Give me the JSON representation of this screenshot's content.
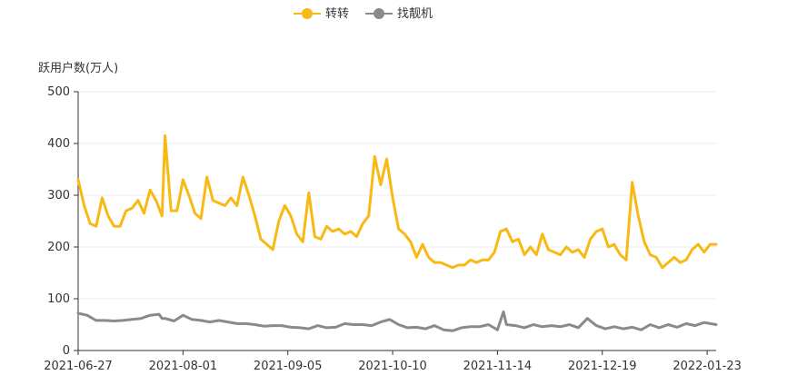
{
  "chart_data": {
    "type": "line",
    "ylabel": "跃用户数(万人)",
    "ylim": [
      0,
      500
    ],
    "yticks": [
      0,
      100,
      200,
      300,
      400,
      500
    ],
    "x_start": "2021-06-27",
    "x_end": "2022-01-26",
    "xtick_labels": [
      "2021-06-27",
      "2021-08-01",
      "2021-09-05",
      "2021-10-10",
      "2021-11-14",
      "2021-12-19",
      "2022-01-23"
    ],
    "grid": true,
    "legend_position": "top-center",
    "series": [
      {
        "name": "转转",
        "color": "#F9B914",
        "x": [
          "2021-06-27",
          "2021-06-29",
          "2021-07-01",
          "2021-07-03",
          "2021-07-05",
          "2021-07-07",
          "2021-07-09",
          "2021-07-11",
          "2021-07-13",
          "2021-07-15",
          "2021-07-17",
          "2021-07-19",
          "2021-07-21",
          "2021-07-23",
          "2021-07-25",
          "2021-07-26",
          "2021-07-28",
          "2021-07-30",
          "2021-08-01",
          "2021-08-03",
          "2021-08-05",
          "2021-08-07",
          "2021-08-09",
          "2021-08-11",
          "2021-08-13",
          "2021-08-15",
          "2021-08-17",
          "2021-08-19",
          "2021-08-21",
          "2021-08-23",
          "2021-08-25",
          "2021-08-27",
          "2021-08-29",
          "2021-08-31",
          "2021-09-02",
          "2021-09-04",
          "2021-09-06",
          "2021-09-08",
          "2021-09-10",
          "2021-09-12",
          "2021-09-14",
          "2021-09-16",
          "2021-09-18",
          "2021-09-20",
          "2021-09-22",
          "2021-09-24",
          "2021-09-26",
          "2021-09-28",
          "2021-09-30",
          "2021-10-02",
          "2021-10-04",
          "2021-10-06",
          "2021-10-08",
          "2021-10-10",
          "2021-10-12",
          "2021-10-14",
          "2021-10-16",
          "2021-10-18",
          "2021-10-20",
          "2021-10-22",
          "2021-10-24",
          "2021-10-26",
          "2021-10-28",
          "2021-10-30",
          "2021-11-01",
          "2021-11-03",
          "2021-11-05",
          "2021-11-07",
          "2021-11-09",
          "2021-11-11",
          "2021-11-13",
          "2021-11-15",
          "2021-11-17",
          "2021-11-19",
          "2021-11-21",
          "2021-11-23",
          "2021-11-25",
          "2021-11-27",
          "2021-11-29",
          "2021-12-01",
          "2021-12-03",
          "2021-12-05",
          "2021-12-07",
          "2021-12-09",
          "2021-12-11",
          "2021-12-13",
          "2021-12-15",
          "2021-12-17",
          "2021-12-19",
          "2021-12-21",
          "2021-12-23",
          "2021-12-25",
          "2021-12-27",
          "2021-12-29",
          "2021-12-31",
          "2022-01-02",
          "2022-01-04",
          "2022-01-06",
          "2022-01-08",
          "2022-01-10",
          "2022-01-12",
          "2022-01-14",
          "2022-01-16",
          "2022-01-18",
          "2022-01-20",
          "2022-01-22",
          "2022-01-24",
          "2022-01-26"
        ],
        "values": [
          330,
          280,
          245,
          240,
          295,
          260,
          240,
          240,
          270,
          275,
          290,
          265,
          310,
          290,
          260,
          415,
          270,
          270,
          330,
          300,
          265,
          255,
          335,
          290,
          285,
          280,
          295,
          280,
          335,
          300,
          260,
          215,
          205,
          195,
          250,
          280,
          260,
          225,
          210,
          305,
          220,
          215,
          240,
          230,
          235,
          225,
          230,
          220,
          245,
          260,
          375,
          320,
          370,
          295,
          235,
          225,
          210,
          180,
          205,
          180,
          170,
          170,
          165,
          160,
          165,
          165,
          175,
          170,
          175,
          175,
          190,
          230,
          235,
          210,
          215,
          185,
          200,
          185,
          225,
          195,
          190,
          185,
          200,
          190,
          195,
          180,
          215,
          230,
          235,
          200,
          205,
          185,
          175,
          325,
          260,
          210,
          185,
          180,
          160,
          170,
          180,
          170,
          175,
          195,
          205,
          190,
          205,
          205
        ]
      },
      {
        "name": "找靓机",
        "color": "#8A8A8A",
        "x": [
          "2021-06-27",
          "2021-06-30",
          "2021-07-03",
          "2021-07-06",
          "2021-07-09",
          "2021-07-12",
          "2021-07-15",
          "2021-07-18",
          "2021-07-21",
          "2021-07-24",
          "2021-07-25",
          "2021-07-26",
          "2021-07-29",
          "2021-08-01",
          "2021-08-04",
          "2021-08-07",
          "2021-08-10",
          "2021-08-13",
          "2021-08-16",
          "2021-08-19",
          "2021-08-22",
          "2021-08-25",
          "2021-08-28",
          "2021-08-31",
          "2021-09-03",
          "2021-09-06",
          "2021-09-09",
          "2021-09-12",
          "2021-09-15",
          "2021-09-18",
          "2021-09-21",
          "2021-09-24",
          "2021-09-27",
          "2021-09-30",
          "2021-10-03",
          "2021-10-06",
          "2021-10-09",
          "2021-10-12",
          "2021-10-15",
          "2021-10-18",
          "2021-10-21",
          "2021-10-24",
          "2021-10-27",
          "2021-10-30",
          "2021-11-02",
          "2021-11-05",
          "2021-11-08",
          "2021-11-11",
          "2021-11-14",
          "2021-11-16",
          "2021-11-17",
          "2021-11-20",
          "2021-11-23",
          "2021-11-26",
          "2021-11-29",
          "2021-12-02",
          "2021-12-05",
          "2021-12-08",
          "2021-12-11",
          "2021-12-14",
          "2021-12-17",
          "2021-12-20",
          "2021-12-23",
          "2021-12-26",
          "2021-12-29",
          "2022-01-01",
          "2022-01-04",
          "2022-01-07",
          "2022-01-10",
          "2022-01-13",
          "2022-01-16",
          "2022-01-19",
          "2022-01-22",
          "2022-01-26"
        ],
        "values": [
          72,
          68,
          58,
          58,
          57,
          58,
          60,
          62,
          68,
          70,
          62,
          62,
          57,
          68,
          60,
          58,
          55,
          58,
          55,
          52,
          52,
          50,
          47,
          48,
          48,
          45,
          44,
          42,
          48,
          44,
          45,
          52,
          50,
          50,
          48,
          55,
          60,
          50,
          44,
          45,
          42,
          48,
          40,
          38,
          44,
          46,
          46,
          50,
          40,
          75,
          50,
          48,
          44,
          50,
          46,
          48,
          46,
          50,
          44,
          62,
          48,
          42,
          46,
          42,
          45,
          40,
          50,
          44,
          50,
          45,
          52,
          48,
          54,
          50
        ]
      }
    ]
  }
}
